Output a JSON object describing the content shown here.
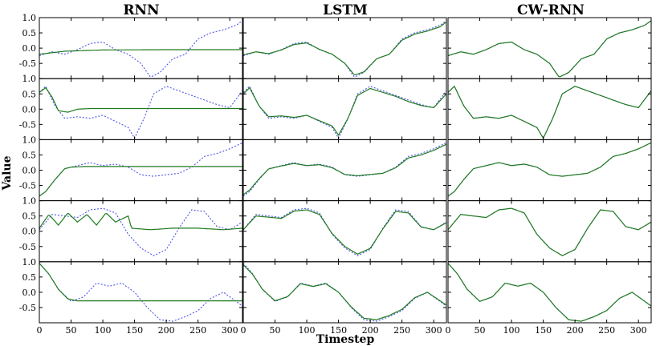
{
  "chart_data": {
    "type": "line",
    "layout": "grid-5x3",
    "column_titles": [
      "RNN",
      "LSTM",
      "CW-RNN"
    ],
    "xlabel": "Timestep",
    "ylabel": "Value",
    "xlim": [
      0,
      320
    ],
    "ylim": [
      -1,
      1
    ],
    "xticks": [
      0,
      50,
      100,
      150,
      200,
      250,
      300
    ],
    "yticks": [
      -0.5,
      0.0,
      0.5,
      1.0
    ],
    "series_styles": {
      "target": {
        "color": "#4b55e6",
        "dash": "dotted"
      },
      "prediction": {
        "color": "#1f7a1f",
        "dash": "solid"
      }
    },
    "rows": [
      {
        "target_x": [
          0,
          20,
          40,
          60,
          80,
          100,
          120,
          140,
          160,
          175,
          190,
          210,
          230,
          250,
          270,
          290,
          310,
          320
        ],
        "target": [
          -0.25,
          -0.12,
          -0.2,
          -0.05,
          0.15,
          0.2,
          -0.05,
          -0.2,
          -0.5,
          -0.95,
          -0.8,
          -0.35,
          -0.2,
          0.3,
          0.5,
          0.6,
          0.75,
          0.9
        ],
        "predictions": [
          {
            "model": "RNN",
            "x": [
              0,
              40,
              100,
              200,
              320
            ],
            "y": [
              -0.2,
              -0.1,
              -0.06,
              -0.05,
              -0.05
            ]
          },
          {
            "model": "LSTM",
            "x": [
              0,
              20,
              40,
              60,
              80,
              100,
              120,
              140,
              160,
              175,
              190,
              210,
              230,
              250,
              270,
              290,
              310,
              320
            ],
            "y": [
              -0.22,
              -0.12,
              -0.18,
              -0.06,
              0.12,
              0.17,
              -0.04,
              -0.2,
              -0.5,
              -0.88,
              -0.78,
              -0.35,
              -0.2,
              0.26,
              0.46,
              0.56,
              0.7,
              0.86
            ]
          },
          {
            "model": "CW-RNN",
            "x": [
              0,
              20,
              40,
              60,
              80,
              100,
              120,
              140,
              160,
              175,
              190,
              210,
              230,
              250,
              270,
              290,
              310,
              320
            ],
            "y": [
              -0.25,
              -0.12,
              -0.2,
              -0.05,
              0.15,
              0.2,
              -0.05,
              -0.2,
              -0.5,
              -0.95,
              -0.8,
              -0.35,
              -0.2,
              0.3,
              0.5,
              0.6,
              0.75,
              0.9
            ]
          }
        ]
      },
      {
        "target_x": [
          0,
          10,
          25,
          40,
          60,
          80,
          100,
          120,
          140,
          150,
          165,
          180,
          200,
          220,
          240,
          260,
          280,
          300,
          320
        ],
        "target": [
          0.55,
          0.75,
          0.1,
          -0.3,
          -0.25,
          -0.3,
          -0.2,
          -0.4,
          -0.6,
          -0.95,
          -0.3,
          0.5,
          0.75,
          0.6,
          0.45,
          0.3,
          0.15,
          0.05,
          0.6
        ],
        "predictions": [
          {
            "model": "RNN",
            "x": [
              0,
              10,
              20,
              30,
              45,
              60,
              80,
              120,
              200,
              320
            ],
            "y": [
              0.55,
              0.7,
              0.4,
              -0.05,
              -0.1,
              0.0,
              0.02,
              0.02,
              0.02,
              0.02
            ]
          },
          {
            "model": "LSTM",
            "x": [
              0,
              10,
              25,
              40,
              60,
              80,
              100,
              120,
              140,
              150,
              165,
              180,
              200,
              220,
              240,
              260,
              280,
              300,
              320
            ],
            "y": [
              0.5,
              0.7,
              0.1,
              -0.25,
              -0.22,
              -0.27,
              -0.2,
              -0.38,
              -0.55,
              -0.85,
              -0.3,
              0.45,
              0.68,
              0.55,
              0.42,
              0.25,
              0.12,
              0.05,
              0.5
            ]
          },
          {
            "model": "CW-RNN",
            "x": [
              0,
              10,
              25,
              40,
              60,
              80,
              100,
              120,
              140,
              150,
              165,
              180,
              200,
              220,
              240,
              260,
              280,
              300,
              320
            ],
            "y": [
              0.55,
              0.75,
              0.1,
              -0.3,
              -0.25,
              -0.3,
              -0.2,
              -0.4,
              -0.6,
              -0.95,
              -0.3,
              0.5,
              0.75,
              0.6,
              0.45,
              0.3,
              0.15,
              0.05,
              0.6
            ]
          }
        ]
      },
      {
        "target_x": [
          0,
          10,
          25,
          40,
          60,
          80,
          100,
          120,
          140,
          160,
          180,
          200,
          220,
          240,
          260,
          280,
          300,
          320
        ],
        "target": [
          -0.85,
          -0.7,
          -0.3,
          0.05,
          0.15,
          0.25,
          0.15,
          0.2,
          0.1,
          -0.15,
          -0.2,
          -0.15,
          -0.1,
          0.1,
          0.45,
          0.55,
          0.7,
          0.9
        ],
        "predictions": [
          {
            "model": "RNN",
            "x": [
              0,
              10,
              25,
              40,
              50,
              70,
              120,
              200,
              320
            ],
            "y": [
              -0.85,
              -0.7,
              -0.3,
              0.05,
              0.1,
              0.12,
              0.12,
              0.12,
              0.12
            ]
          },
          {
            "model": "LSTM",
            "x": [
              0,
              10,
              25,
              40,
              60,
              80,
              100,
              120,
              140,
              160,
              180,
              200,
              220,
              240,
              260,
              280,
              300,
              320
            ],
            "y": [
              -0.8,
              -0.65,
              -0.28,
              0.04,
              0.14,
              0.22,
              0.15,
              0.18,
              0.08,
              -0.14,
              -0.18,
              -0.14,
              -0.1,
              0.08,
              0.4,
              0.5,
              0.65,
              0.85
            ]
          },
          {
            "model": "CW-RNN",
            "x": [
              0,
              10,
              25,
              40,
              60,
              80,
              100,
              120,
              140,
              160,
              180,
              200,
              220,
              240,
              260,
              280,
              300,
              320
            ],
            "y": [
              -0.85,
              -0.7,
              -0.3,
              0.05,
              0.15,
              0.25,
              0.15,
              0.2,
              0.1,
              -0.15,
              -0.2,
              -0.15,
              -0.1,
              0.1,
              0.45,
              0.55,
              0.7,
              0.9
            ]
          }
        ]
      },
      {
        "target_x": [
          0,
          20,
          40,
          60,
          80,
          100,
          120,
          140,
          160,
          180,
          200,
          220,
          240,
          260,
          280,
          300,
          320
        ],
        "target": [
          0.05,
          0.55,
          0.5,
          0.45,
          0.7,
          0.75,
          0.6,
          -0.1,
          -0.55,
          -0.8,
          -0.6,
          0.1,
          0.7,
          0.65,
          0.15,
          0.05,
          0.3
        ],
        "predictions": [
          {
            "model": "RNN",
            "x": [
              0,
              15,
              30,
              45,
              60,
              75,
              90,
              105,
              120,
              140,
              145,
              175,
              210,
              250,
              290,
              320
            ],
            "y": [
              0.1,
              0.55,
              0.2,
              0.6,
              0.3,
              0.55,
              0.2,
              0.6,
              0.3,
              0.5,
              0.1,
              0.05,
              0.1,
              0.1,
              0.05,
              0.1
            ]
          },
          {
            "model": "LSTM",
            "x": [
              0,
              20,
              40,
              60,
              80,
              100,
              120,
              140,
              160,
              180,
              200,
              220,
              240,
              260,
              280,
              300,
              320
            ],
            "y": [
              0.05,
              0.5,
              0.46,
              0.42,
              0.66,
              0.7,
              0.55,
              -0.08,
              -0.5,
              -0.75,
              -0.56,
              0.08,
              0.65,
              0.6,
              0.14,
              0.05,
              0.28
            ]
          },
          {
            "model": "CW-RNN",
            "x": [
              0,
              20,
              40,
              60,
              80,
              100,
              120,
              140,
              160,
              180,
              200,
              220,
              240,
              260,
              280,
              300,
              320
            ],
            "y": [
              0.05,
              0.55,
              0.5,
              0.45,
              0.7,
              0.75,
              0.6,
              -0.1,
              -0.55,
              -0.8,
              -0.6,
              0.1,
              0.7,
              0.65,
              0.15,
              0.05,
              0.3
            ]
          }
        ]
      },
      {
        "target_x": [
          0,
          15,
          30,
          50,
          70,
          90,
          110,
          130,
          150,
          170,
          190,
          210,
          230,
          250,
          270,
          290,
          310,
          320
        ],
        "target": [
          0.95,
          0.6,
          0.1,
          -0.3,
          -0.15,
          0.3,
          0.2,
          0.3,
          0.0,
          -0.5,
          -0.9,
          -0.95,
          -0.8,
          -0.6,
          -0.2,
          0.0,
          -0.3,
          -0.45
        ],
        "predictions": [
          {
            "model": "RNN",
            "x": [
              0,
              15,
              30,
              45,
              60,
              100,
              200,
              320
            ],
            "y": [
              0.95,
              0.6,
              0.1,
              -0.22,
              -0.28,
              -0.28,
              -0.28,
              -0.28
            ]
          },
          {
            "model": "LSTM",
            "x": [
              0,
              15,
              30,
              50,
              70,
              90,
              110,
              130,
              150,
              170,
              190,
              210,
              230,
              250,
              270,
              290,
              310,
              320
            ],
            "y": [
              0.9,
              0.58,
              0.1,
              -0.28,
              -0.14,
              0.28,
              0.19,
              0.28,
              0.0,
              -0.48,
              -0.85,
              -0.9,
              -0.76,
              -0.56,
              -0.18,
              0.0,
              -0.28,
              -0.42
            ]
          },
          {
            "model": "CW-RNN",
            "x": [
              0,
              15,
              30,
              50,
              70,
              90,
              110,
              130,
              150,
              170,
              190,
              210,
              230,
              250,
              270,
              290,
              310,
              320
            ],
            "y": [
              0.95,
              0.6,
              0.1,
              -0.3,
              -0.15,
              0.3,
              0.2,
              0.3,
              0.0,
              -0.5,
              -0.9,
              -0.95,
              -0.8,
              -0.6,
              -0.2,
              0.0,
              -0.3,
              -0.45
            ]
          }
        ]
      }
    ]
  }
}
